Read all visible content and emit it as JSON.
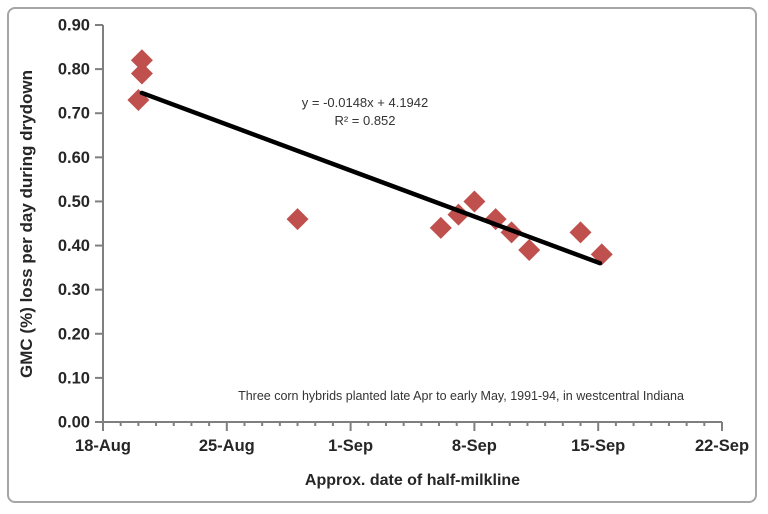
{
  "chart_data": {
    "type": "scatter",
    "title": "",
    "xlabel": "Approx. date of half-milkline",
    "ylabel": "GMC (%) loss per day during drydown",
    "equation_line1": "y = -0.0148x + 4.1942",
    "equation_line2": "R² = 0.852",
    "annotation": "Three  corn hybrids planted late Apr to early May, 1991-94,  in westcentral  Indiana",
    "legend": "none",
    "grid": false,
    "x_axis": {
      "tick_labels": [
        "18-Aug",
        "25-Aug",
        "1-Sep",
        "8-Sep",
        "15-Sep",
        "22-Sep"
      ],
      "tick_days": [
        0,
        7,
        14,
        21,
        28,
        35
      ],
      "minor_tick_interval_days": 1,
      "range_days": [
        0,
        35
      ]
    },
    "y_axis": {
      "tick_labels": [
        "0.00",
        "0.10",
        "0.20",
        "0.30",
        "0.40",
        "0.50",
        "0.60",
        "0.70",
        "0.80",
        "0.90"
      ],
      "tick_values": [
        0.0,
        0.1,
        0.2,
        0.3,
        0.4,
        0.5,
        0.6,
        0.7,
        0.8,
        0.9
      ],
      "range": [
        0.0,
        0.9
      ]
    },
    "points": [
      {
        "date": "20-Aug",
        "day": 2.2,
        "value": 0.82
      },
      {
        "date": "20-Aug",
        "day": 2.2,
        "value": 0.79
      },
      {
        "date": "20-Aug",
        "day": 2.0,
        "value": 0.73
      },
      {
        "date": "29-Aug",
        "day": 11.0,
        "value": 0.46
      },
      {
        "date": "6-Sep",
        "day": 19.1,
        "value": 0.44
      },
      {
        "date": "7-Sep",
        "day": 20.1,
        "value": 0.47
      },
      {
        "date": "8-Sep",
        "day": 21.0,
        "value": 0.5
      },
      {
        "date": "9-Sep",
        "day": 22.2,
        "value": 0.46
      },
      {
        "date": "10-Sep",
        "day": 23.1,
        "value": 0.43
      },
      {
        "date": "11-Sep",
        "day": 24.1,
        "value": 0.39
      },
      {
        "date": "14-Sep",
        "day": 27.0,
        "value": 0.43
      },
      {
        "date": "15-Sep",
        "day": 28.2,
        "value": 0.38
      }
    ],
    "trendline": {
      "start_day": 2.2,
      "start_value": 0.746,
      "end_day": 28.1,
      "end_value": 0.36
    },
    "colors": {
      "marker": "#c0504d",
      "trendline": "#000000",
      "axis": "#7f7f7f",
      "text": "#262626",
      "border": "#a6a6a6",
      "background": "#ffffff"
    }
  }
}
